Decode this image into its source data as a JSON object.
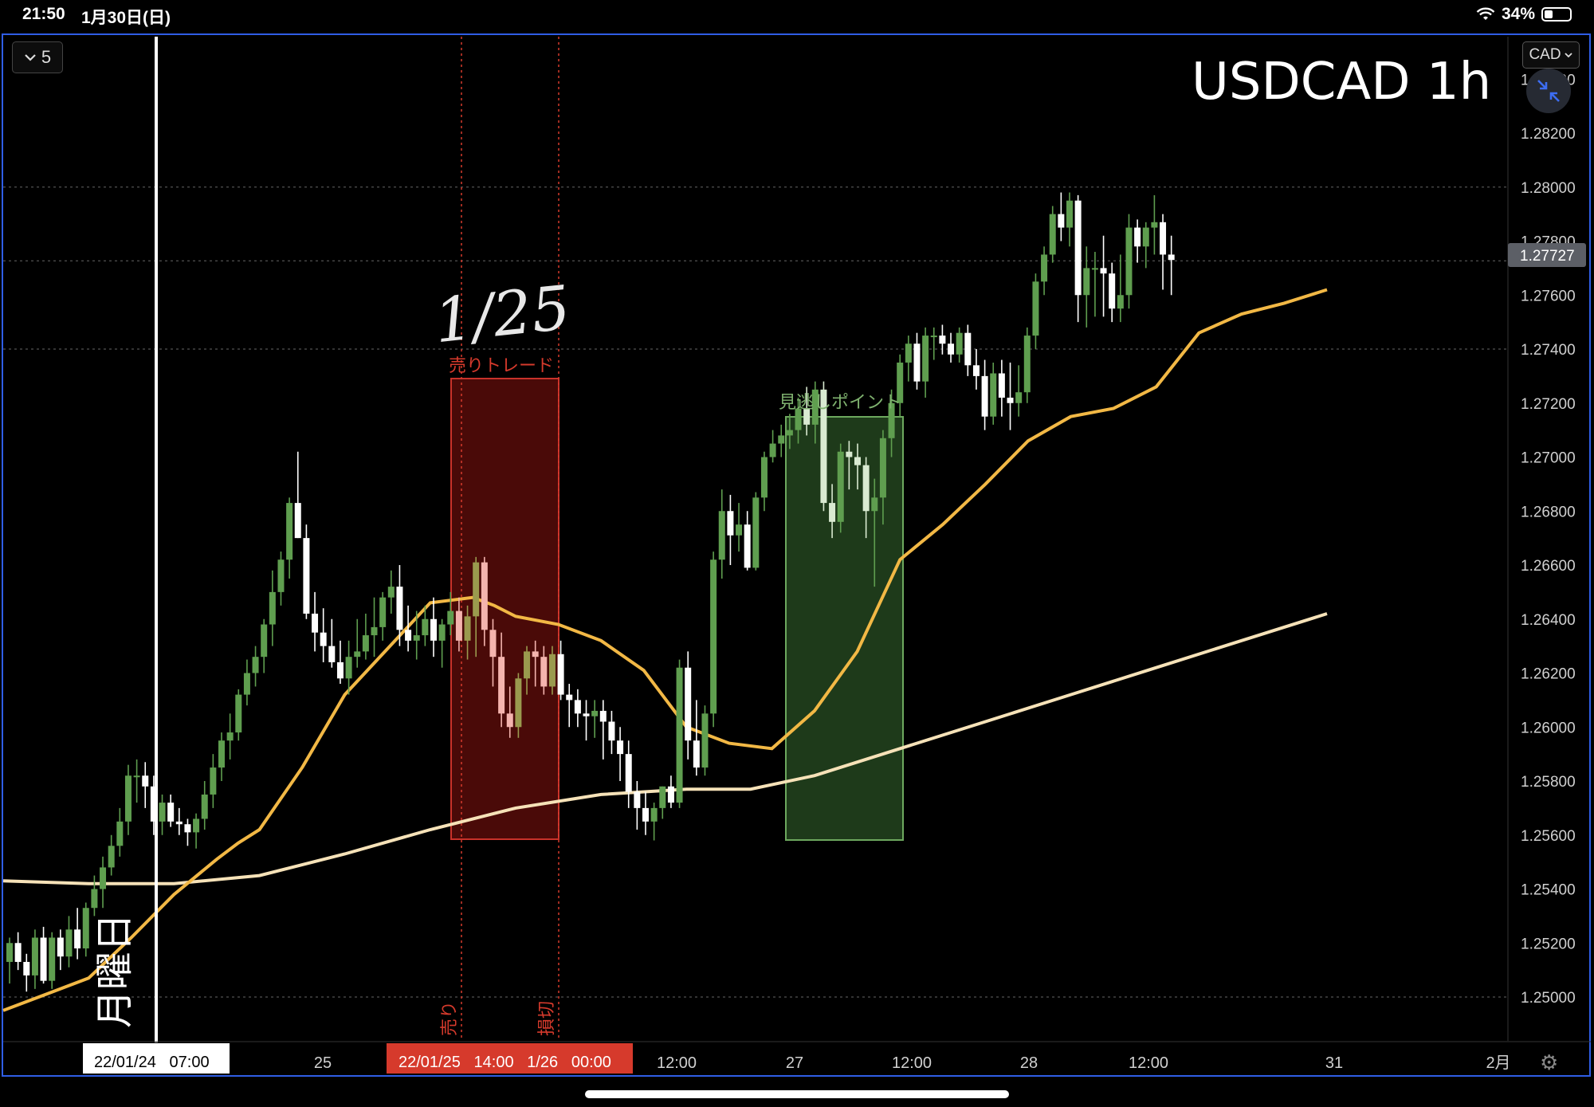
{
  "status_bar": {
    "time": "21:50",
    "date": "1月30日(日)",
    "battery": "34%"
  },
  "toolbar": {
    "interval_label": "5",
    "currency_label": "CAD"
  },
  "chart_data": {
    "type": "candlestick",
    "title": "USDCAD 1h",
    "ylim": [
      1.249,
      1.286
    ],
    "price_ticks": [
      "1.28400",
      "1.28200",
      "1.28000",
      "1.27800",
      "1.27600",
      "1.27400",
      "1.27200",
      "1.27000",
      "1.26800",
      "1.26600",
      "1.26400",
      "1.26200",
      "1.26000",
      "1.25800",
      "1.25600",
      "1.25400",
      "1.25200",
      "1.25000"
    ],
    "time_ticks": [
      "25",
      "12:00",
      "27",
      "12:00",
      "28",
      "12:00",
      "31",
      "2月"
    ],
    "last_price": "1.27727",
    "grid_prices": [
      1.28,
      1.27727,
      1.274,
      1.25
    ],
    "candles": [
      [
        1.2513,
        1.2522,
        1.2505,
        1.252
      ],
      [
        1.252,
        1.2524,
        1.251,
        1.2513
      ],
      [
        1.2513,
        1.2516,
        1.2502,
        1.2508
      ],
      [
        1.2508,
        1.2525,
        1.2503,
        1.2522
      ],
      [
        1.2522,
        1.2526,
        1.2505,
        1.2506
      ],
      [
        1.2506,
        1.2524,
        1.2503,
        1.2522
      ],
      [
        1.2522,
        1.2525,
        1.251,
        1.2515
      ],
      [
        1.2515,
        1.253,
        1.2511,
        1.2525
      ],
      [
        1.2525,
        1.2533,
        1.2514,
        1.2518
      ],
      [
        1.2518,
        1.2535,
        1.2515,
        1.2533
      ],
      [
        1.2533,
        1.2545,
        1.253,
        1.254
      ],
      [
        1.254,
        1.2552,
        1.2533,
        1.2548
      ],
      [
        1.2548,
        1.256,
        1.2545,
        1.2556
      ],
      [
        1.2556,
        1.257,
        1.2552,
        1.2565
      ],
      [
        1.2565,
        1.2586,
        1.256,
        1.2582
      ],
      [
        1.2582,
        1.2588,
        1.2572,
        1.2582
      ],
      [
        1.2582,
        1.2587,
        1.257,
        1.2578
      ],
      [
        1.2578,
        1.2582,
        1.256,
        1.2565
      ],
      [
        1.2565,
        1.2575,
        1.256,
        1.2572
      ],
      [
        1.2572,
        1.2575,
        1.2563,
        1.2565
      ],
      [
        1.2565,
        1.257,
        1.256,
        1.2564
      ],
      [
        1.2564,
        1.2566,
        1.2556,
        1.2561
      ],
      [
        1.2561,
        1.2568,
        1.2555,
        1.2566
      ],
      [
        1.2566,
        1.258,
        1.2562,
        1.2575
      ],
      [
        1.2575,
        1.259,
        1.257,
        1.2585
      ],
      [
        1.2585,
        1.2598,
        1.258,
        1.2595
      ],
      [
        1.2595,
        1.2605,
        1.2588,
        1.2598
      ],
      [
        1.2598,
        1.2614,
        1.2595,
        1.2612
      ],
      [
        1.2612,
        1.2625,
        1.2608,
        1.262
      ],
      [
        1.262,
        1.263,
        1.2615,
        1.2626
      ],
      [
        1.2626,
        1.264,
        1.262,
        1.2638
      ],
      [
        1.2638,
        1.2658,
        1.263,
        1.265
      ],
      [
        1.265,
        1.2665,
        1.2645,
        1.2662
      ],
      [
        1.2662,
        1.2685,
        1.2655,
        1.2683
      ],
      [
        1.2683,
        1.2702,
        1.267,
        1.267
      ],
      [
        1.267,
        1.2675,
        1.264,
        1.2642
      ],
      [
        1.2642,
        1.265,
        1.2628,
        1.2635
      ],
      [
        1.2635,
        1.2644,
        1.2624,
        1.263
      ],
      [
        1.263,
        1.264,
        1.2622,
        1.2624
      ],
      [
        1.2624,
        1.2632,
        1.2616,
        1.2618
      ],
      [
        1.2618,
        1.2632,
        1.2612,
        1.2626
      ],
      [
        1.2626,
        1.264,
        1.2622,
        1.2628
      ],
      [
        1.2628,
        1.2642,
        1.2625,
        1.2634
      ],
      [
        1.2634,
        1.2648,
        1.2626,
        1.2637
      ],
      [
        1.2637,
        1.265,
        1.2632,
        1.2648
      ],
      [
        1.2648,
        1.2658,
        1.2642,
        1.2652
      ],
      [
        1.2652,
        1.266,
        1.263,
        1.2636
      ],
      [
        1.2636,
        1.2645,
        1.2628,
        1.2632
      ],
      [
        1.2632,
        1.2643,
        1.2625,
        1.2634
      ],
      [
        1.2634,
        1.2645,
        1.263,
        1.264
      ],
      [
        1.264,
        1.2648,
        1.2626,
        1.2632
      ],
      [
        1.2632,
        1.264,
        1.2622,
        1.2638
      ],
      [
        1.2638,
        1.265,
        1.2634,
        1.2643
      ],
      [
        1.2643,
        1.2648,
        1.2628,
        1.2632
      ],
      [
        1.2632,
        1.2645,
        1.2625,
        1.2641
      ],
      [
        1.2641,
        1.2663,
        1.2626,
        1.2661
      ],
      [
        1.2661,
        1.2663,
        1.263,
        1.2636
      ],
      [
        1.2636,
        1.264,
        1.2615,
        1.2626
      ],
      [
        1.2626,
        1.2635,
        1.26,
        1.2605
      ],
      [
        1.2605,
        1.2615,
        1.2596,
        1.26
      ],
      [
        1.26,
        1.262,
        1.2596,
        1.2618
      ],
      [
        1.2618,
        1.263,
        1.2612,
        1.2628
      ],
      [
        1.2628,
        1.2632,
        1.2615,
        1.2626
      ],
      [
        1.2626,
        1.263,
        1.2612,
        1.2615
      ],
      [
        1.2615,
        1.263,
        1.2612,
        1.2627
      ],
      [
        1.2627,
        1.2632,
        1.261,
        1.2612
      ],
      [
        1.2612,
        1.2616,
        1.26,
        1.261
      ],
      [
        1.261,
        1.2614,
        1.26,
        1.2605
      ],
      [
        1.2605,
        1.261,
        1.2595,
        1.2604
      ],
      [
        1.2604,
        1.261,
        1.2596,
        1.2606
      ],
      [
        1.2606,
        1.261,
        1.2588,
        1.2602
      ],
      [
        1.2602,
        1.2606,
        1.259,
        1.2595
      ],
      [
        1.2595,
        1.26,
        1.258,
        1.259
      ],
      [
        1.259,
        1.2595,
        1.257,
        1.2576
      ],
      [
        1.2576,
        1.258,
        1.2562,
        1.257
      ],
      [
        1.257,
        1.2576,
        1.256,
        1.2565
      ],
      [
        1.2565,
        1.2572,
        1.2558,
        1.257
      ],
      [
        1.257,
        1.2578,
        1.2566,
        1.2578
      ],
      [
        1.2578,
        1.2582,
        1.257,
        1.2572
      ],
      [
        1.2572,
        1.2625,
        1.257,
        1.2622
      ],
      [
        1.2622,
        1.2628,
        1.2588,
        1.2595
      ],
      [
        1.2595,
        1.261,
        1.2582,
        1.2585
      ],
      [
        1.2585,
        1.2608,
        1.2582,
        1.2605
      ],
      [
        1.2605,
        1.2665,
        1.26,
        1.2662
      ],
      [
        1.2662,
        1.2688,
        1.2655,
        1.268
      ],
      [
        1.268,
        1.2686,
        1.266,
        1.2671
      ],
      [
        1.2671,
        1.2683,
        1.2665,
        1.2675
      ],
      [
        1.2675,
        1.268,
        1.2658,
        1.2659
      ],
      [
        1.2659,
        1.2687,
        1.2658,
        1.2685
      ],
      [
        1.2685,
        1.2702,
        1.268,
        1.27
      ],
      [
        1.27,
        1.271,
        1.2698,
        1.2705
      ],
      [
        1.2705,
        1.2712,
        1.27,
        1.2708
      ],
      [
        1.2708,
        1.2716,
        1.2703,
        1.271
      ],
      [
        1.271,
        1.2722,
        1.2705,
        1.2718
      ],
      [
        1.2718,
        1.2726,
        1.2708,
        1.2712
      ],
      [
        1.2712,
        1.2728,
        1.2705,
        1.2725
      ],
      [
        1.2725,
        1.2728,
        1.268,
        1.2683
      ],
      [
        1.2683,
        1.269,
        1.267,
        1.2676
      ],
      [
        1.2676,
        1.2705,
        1.2672,
        1.2702
      ],
      [
        1.2702,
        1.2706,
        1.2688,
        1.27
      ],
      [
        1.27,
        1.2705,
        1.2688,
        1.2697
      ],
      [
        1.2697,
        1.27,
        1.267,
        1.268
      ],
      [
        1.268,
        1.2692,
        1.2652,
        1.2685
      ],
      [
        1.2685,
        1.271,
        1.2675,
        1.2707
      ],
      [
        1.2707,
        1.2725,
        1.27,
        1.272
      ],
      [
        1.272,
        1.2738,
        1.2715,
        1.2735
      ],
      [
        1.2735,
        1.2745,
        1.2728,
        1.2742
      ],
      [
        1.2742,
        1.2746,
        1.2725,
        1.2728
      ],
      [
        1.2728,
        1.2748,
        1.2722,
        1.2745
      ],
      [
        1.2745,
        1.2748,
        1.2736,
        1.2745
      ],
      [
        1.2745,
        1.2749,
        1.2738,
        1.2742
      ],
      [
        1.2742,
        1.2746,
        1.2735,
        1.2738
      ],
      [
        1.2738,
        1.2748,
        1.2735,
        1.2746
      ],
      [
        1.2746,
        1.2749,
        1.273,
        1.2734
      ],
      [
        1.2734,
        1.274,
        1.2725,
        1.273
      ],
      [
        1.273,
        1.2736,
        1.271,
        1.2715
      ],
      [
        1.2715,
        1.2735,
        1.2712,
        1.2731
      ],
      [
        1.2731,
        1.2736,
        1.2715,
        1.2722
      ],
      [
        1.2722,
        1.2735,
        1.271,
        1.272
      ],
      [
        1.272,
        1.2734,
        1.2715,
        1.2724
      ],
      [
        1.2724,
        1.2748,
        1.272,
        1.2745
      ],
      [
        1.2745,
        1.2768,
        1.274,
        1.2765
      ],
      [
        1.2765,
        1.2778,
        1.276,
        1.2775
      ],
      [
        1.2775,
        1.2793,
        1.2772,
        1.279
      ],
      [
        1.279,
        1.2798,
        1.278,
        1.2785
      ],
      [
        1.2785,
        1.2798,
        1.2778,
        1.2795
      ],
      [
        1.2795,
        1.2797,
        1.275,
        1.276
      ],
      [
        1.276,
        1.2778,
        1.2748,
        1.277
      ],
      [
        1.277,
        1.2776,
        1.2752,
        1.277
      ],
      [
        1.277,
        1.2782,
        1.2752,
        1.2768
      ],
      [
        1.2768,
        1.2772,
        1.275,
        1.2755
      ],
      [
        1.2755,
        1.2775,
        1.275,
        1.276
      ],
      [
        1.276,
        1.279,
        1.2755,
        1.2785
      ],
      [
        1.2785,
        1.2788,
        1.2772,
        1.2778
      ],
      [
        1.2778,
        1.2787,
        1.277,
        1.2785
      ],
      [
        1.2785,
        1.2797,
        1.2775,
        1.2787
      ],
      [
        1.2787,
        1.279,
        1.2762,
        1.2775
      ],
      [
        1.2775,
        1.2782,
        1.276,
        1.2773
      ]
    ],
    "ema_fast": [
      [
        0,
        1.2495
      ],
      [
        20,
        1.2501
      ],
      [
        40,
        1.2507
      ],
      [
        60,
        1.2522
      ],
      [
        80,
        1.2538
      ],
      [
        100,
        1.2551
      ],
      [
        110,
        1.2557
      ],
      [
        120,
        1.2562
      ],
      [
        140,
        1.2585
      ],
      [
        160,
        1.2612
      ],
      [
        180,
        1.2629
      ],
      [
        200,
        1.2646
      ],
      [
        220,
        1.2648
      ],
      [
        230,
        1.2645
      ],
      [
        240,
        1.2641
      ],
      [
        260,
        1.2638
      ],
      [
        280,
        1.2632
      ],
      [
        300,
        1.2621
      ],
      [
        320,
        1.26
      ],
      [
        340,
        1.2594
      ],
      [
        360,
        1.2592
      ],
      [
        380,
        1.2606
      ],
      [
        400,
        1.2628
      ],
      [
        420,
        1.2662
      ],
      [
        440,
        1.2675
      ],
      [
        460,
        1.269
      ],
      [
        480,
        1.2706
      ],
      [
        500,
        1.2715
      ],
      [
        520,
        1.2718
      ],
      [
        540,
        1.2726
      ],
      [
        560,
        1.2746
      ],
      [
        580,
        1.2753
      ],
      [
        600,
        1.2757
      ],
      [
        620,
        1.2762
      ]
    ],
    "ema_slow": [
      [
        0,
        1.2543
      ],
      [
        40,
        1.2542
      ],
      [
        80,
        1.2542
      ],
      [
        120,
        1.2545
      ],
      [
        160,
        1.2553
      ],
      [
        200,
        1.2562
      ],
      [
        240,
        1.257
      ],
      [
        280,
        1.2575
      ],
      [
        320,
        1.2577
      ],
      [
        350,
        1.2577
      ],
      [
        380,
        1.2582
      ],
      [
        420,
        1.2592
      ],
      [
        460,
        1.2602
      ],
      [
        500,
        1.2612
      ],
      [
        540,
        1.2622
      ],
      [
        580,
        1.2632
      ],
      [
        620,
        1.2642
      ]
    ]
  },
  "annotations": {
    "handwritten_date": "1/25",
    "sell_zone_label": "売りトレード",
    "missed_zone_label": "見逃しポイント",
    "monday_label": "月曜日",
    "sell_marker": "売り",
    "stop_marker": "損切",
    "crosshair_date_label": "22/01/24   07:00",
    "range_date_label": "22/01/25   14:00   1/26   00:00"
  },
  "colors": {
    "up": "#5f9e4f",
    "down": "#ffffff",
    "ema_fast": "#f2b845",
    "ema_slow": "#f6e2b8",
    "sell_zone_fill": "#4a0a08",
    "sell_zone_border": "#c8322a",
    "missed_zone_fill": "#1e3a1a",
    "missed_zone_border": "#6da85e",
    "red_marker": "#d63a2c",
    "missed_label": "#7fb26f"
  }
}
